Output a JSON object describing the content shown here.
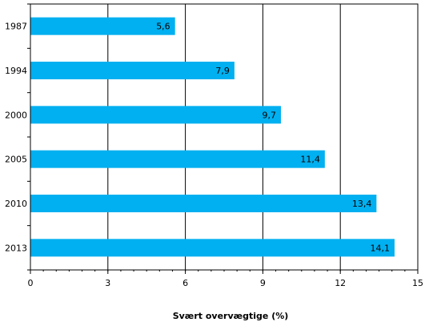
{
  "chart_data": {
    "type": "bar",
    "orientation": "horizontal",
    "categories": [
      "1987",
      "1994",
      "2000",
      "2005",
      "2010",
      "2013"
    ],
    "values": [
      5.6,
      7.9,
      9.7,
      11.4,
      13.4,
      14.1
    ],
    "value_labels": [
      "5,6",
      "7,9",
      "9,7",
      "11,4",
      "13,4",
      "14,1"
    ],
    "xlabel": "Svært overvægtige (%)",
    "ylabel": "",
    "xlim": [
      0,
      15
    ],
    "xticks": [
      0,
      3,
      6,
      9,
      12,
      15
    ],
    "xtick_labels": [
      "0",
      "3",
      "6",
      "9",
      "12",
      "15"
    ],
    "grid": "vertical",
    "legend": "none",
    "bar_color": "#00B0F0"
  }
}
